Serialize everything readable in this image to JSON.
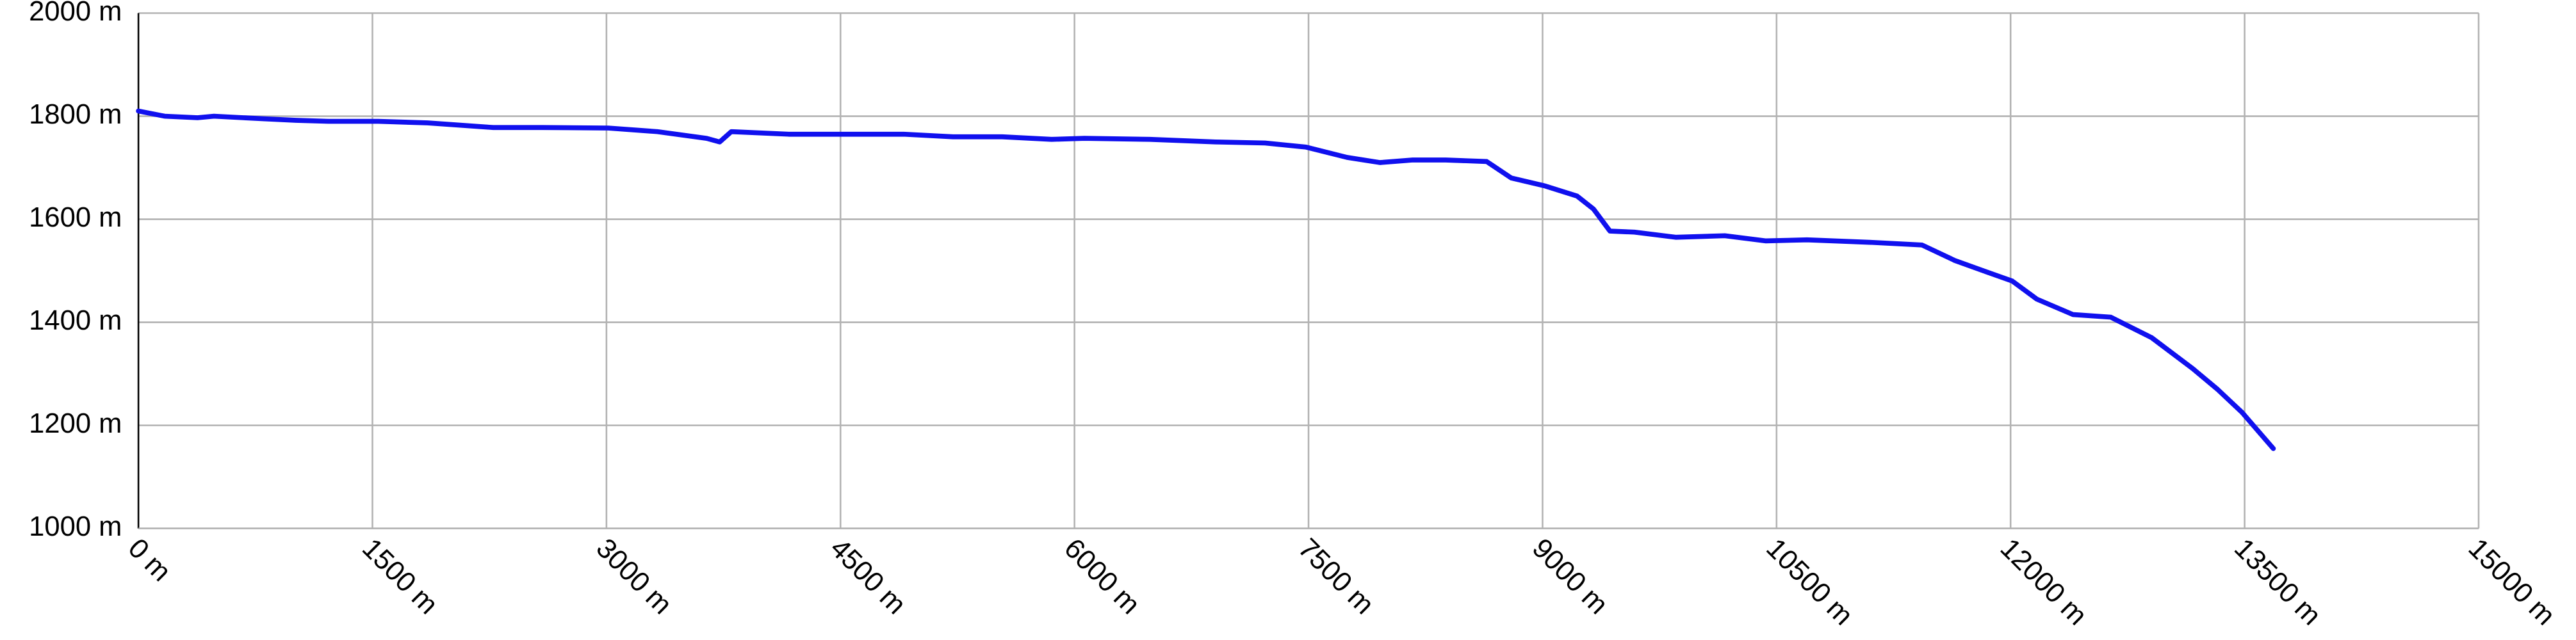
{
  "chart_data": {
    "type": "line",
    "x": [
      0,
      168,
      379,
      484,
      800,
      1010,
      1221,
      1537,
      1853,
      2274,
      2589,
      3011,
      3326,
      3642,
      3726,
      3800,
      4168,
      4484,
      4905,
      5221,
      5537,
      5853,
      6063,
      6484,
      6905,
      7221,
      7484,
      7747,
      7958,
      8168,
      8379,
      8642,
      8800,
      9011,
      9221,
      9326,
      9432,
      9589,
      9853,
      10168,
      10432,
      10695,
      11116,
      11432,
      11642,
      11853,
      12011,
      12168,
      12400,
      12642,
      12905,
      13168,
      13326,
      13484,
      13684
    ],
    "values": [
      1810,
      1800,
      1797,
      1800,
      1795,
      1792,
      1790,
      1790,
      1787,
      1778,
      1778,
      1777,
      1770,
      1757,
      1750,
      1770,
      1765,
      1765,
      1765,
      1760,
      1760,
      1755,
      1757,
      1755,
      1750,
      1748,
      1740,
      1720,
      1710,
      1715,
      1715,
      1712,
      1680,
      1665,
      1645,
      1620,
      1577,
      1575,
      1565,
      1568,
      1558,
      1560,
      1555,
      1550,
      1520,
      1497,
      1480,
      1445,
      1415,
      1410,
      1370,
      1310,
      1270,
      1225,
      1155
    ],
    "color": "#1010ee",
    "xlim": [
      0,
      15000
    ],
    "ylim": [
      1000,
      2000
    ],
    "xticks": [
      {
        "value": 0,
        "label": "0 m"
      },
      {
        "value": 1500,
        "label": "1500 m"
      },
      {
        "value": 3000,
        "label": "3000 m"
      },
      {
        "value": 4500,
        "label": "4500 m"
      },
      {
        "value": 6000,
        "label": "6000 m"
      },
      {
        "value": 7500,
        "label": "7500 m"
      },
      {
        "value": 9000,
        "label": "9000 m"
      },
      {
        "value": 10500,
        "label": "10500 m"
      },
      {
        "value": 12000,
        "label": "12000 m"
      },
      {
        "value": 13500,
        "label": "13500 m"
      },
      {
        "value": 15000,
        "label": "15000 m"
      }
    ],
    "yticks": [
      {
        "value": 1000,
        "label": "1000 m"
      },
      {
        "value": 1200,
        "label": "1200 m"
      },
      {
        "value": 1400,
        "label": "1400 m"
      },
      {
        "value": 1600,
        "label": "1600 m"
      },
      {
        "value": 1800,
        "label": "1800 m"
      },
      {
        "value": 2000,
        "label": "2000 m"
      }
    ],
    "grid": true
  }
}
